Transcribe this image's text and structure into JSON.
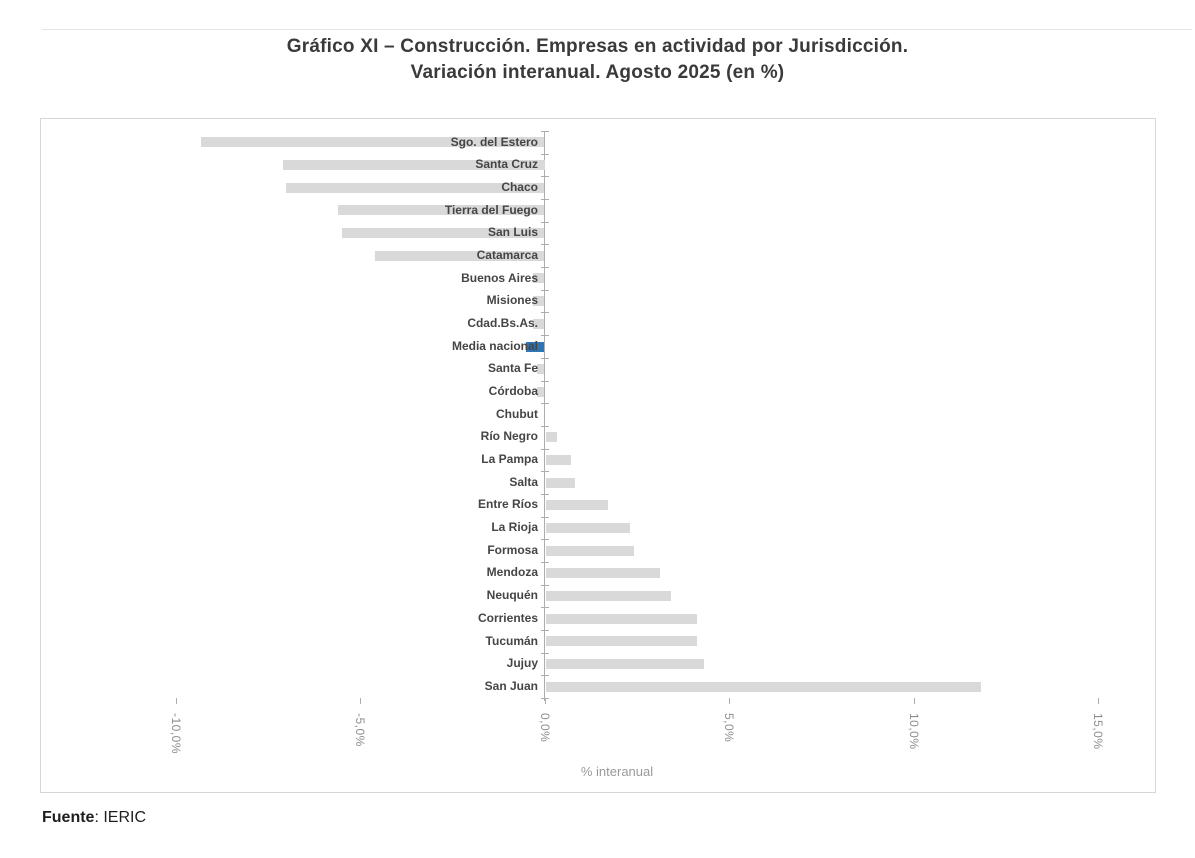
{
  "title": {
    "line1": "Gráfico XI – Construcción. Empresas en actividad por Jurisdicción.",
    "line2": "Variación interanual. Agosto 2025 (en %)"
  },
  "page": {
    "source_label": "Fuente",
    "source_value": ": IERIC"
  },
  "chart_data": {
    "type": "bar",
    "orientation": "horizontal",
    "title": "Gráfico XI – Construcción. Empresas en actividad por Jurisdicción. Variación interanual. Agosto 2025 (en %)",
    "xlabel": "% interanual",
    "unit": "%",
    "grid": false,
    "categories": [
      "Sgo. del Estero",
      "Santa Cruz",
      "Chaco",
      "Tierra del Fuego",
      "San Luis",
      "Catamarca",
      "Buenos Aires",
      "Misiones",
      "Cdad.Bs.As.",
      "Media nacional",
      "Santa Fe",
      "Córdoba",
      "Chubut",
      "Río Negro",
      "La Pampa",
      "Salta",
      "Entre Ríos",
      "La Rioja",
      "Formosa",
      "Mendoza",
      "Neuquén",
      "Corrientes",
      "Tucumán",
      "Jujuy",
      "San Juan"
    ],
    "values": [
      -9.3,
      -7.1,
      -7.0,
      -5.6,
      -5.5,
      -4.6,
      -0.3,
      -0.3,
      -0.3,
      -0.5,
      -0.2,
      -0.2,
      0.0,
      0.3,
      0.7,
      0.8,
      1.7,
      2.3,
      2.4,
      3.1,
      3.4,
      4.1,
      4.1,
      4.3,
      11.8
    ],
    "highlight_category": "Media nacional",
    "bar_color": "#D9D9D9",
    "highlight_color": "#2E75B6",
    "axis_color": "#ADADAD",
    "x_ticks": [
      {
        "label": "-10,0%",
        "value": -10
      },
      {
        "label": "-5,0%",
        "value": -5
      },
      {
        "label": "0,0%",
        "value": 0
      },
      {
        "label": "5,0%",
        "value": 5
      },
      {
        "label": "10,0%",
        "value": 10
      },
      {
        "label": "15,0%",
        "value": 15
      }
    ],
    "xlim": [
      -13.3,
      16.5
    ]
  }
}
